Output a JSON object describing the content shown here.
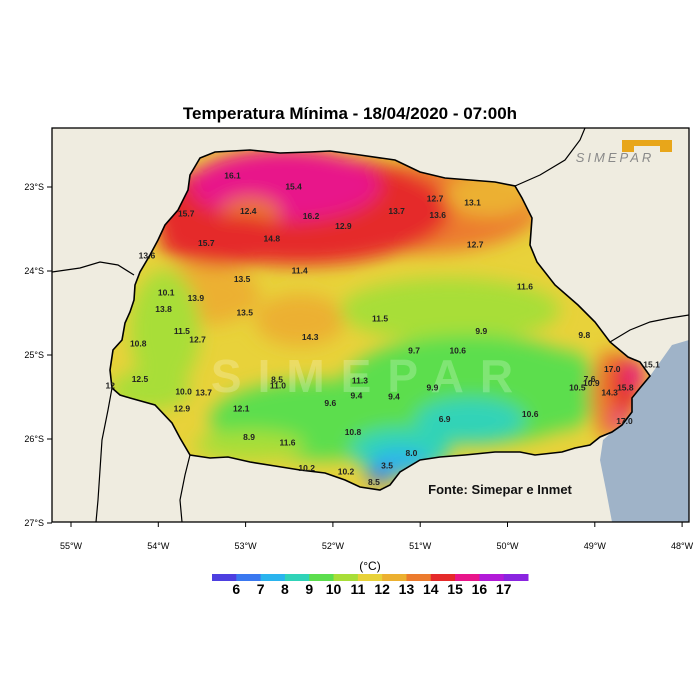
{
  "title": "Temperatura Mínima - 18/04/2020 - 07:00h",
  "source_label": "Fonte: Simepar e Inmet",
  "brand": "SIMEPAR",
  "colorbar": {
    "unit": "(°C)",
    "ticks": [
      "6",
      "7",
      "8",
      "9",
      "10",
      "11",
      "12",
      "13",
      "14",
      "15",
      "16",
      "17"
    ],
    "colors": [
      "#4d3fe0",
      "#3a78f0",
      "#2ab4ee",
      "#30d3b8",
      "#5cde4e",
      "#a8de38",
      "#e8d23a",
      "#ecb030",
      "#ec7b2e",
      "#e52a2a",
      "#e8158a",
      "#b21ad8",
      "#8a24e0"
    ]
  },
  "axes": {
    "lon_ticks": [
      "55°W",
      "54°W",
      "53°W",
      "52°W",
      "51°W",
      "50°W",
      "49°W",
      "48°W"
    ],
    "lat_ticks": [
      "23°S",
      "24°S",
      "25°S",
      "26°S",
      "27°S"
    ]
  },
  "colors": {
    "background": "#efece0",
    "ocean": "#9fb3c8",
    "border": "#000000"
  },
  "observations": [
    {
      "v": "16.1",
      "lon": -53.15,
      "lat": -22.9
    },
    {
      "v": "15.4",
      "lon": -52.45,
      "lat": -23.03
    },
    {
      "v": "15.7",
      "lon": -53.68,
      "lat": -23.35
    },
    {
      "v": "12.4",
      "lon": -52.97,
      "lat": -23.32
    },
    {
      "v": "16.2",
      "lon": -52.25,
      "lat": -23.38
    },
    {
      "v": "12.9",
      "lon": -51.88,
      "lat": -23.5
    },
    {
      "v": "13.7",
      "lon": -51.27,
      "lat": -23.32
    },
    {
      "v": "12.7",
      "lon": -50.83,
      "lat": -23.17
    },
    {
      "v": "13.6",
      "lon": -50.8,
      "lat": -23.37
    },
    {
      "v": "13.1",
      "lon": -50.4,
      "lat": -23.22
    },
    {
      "v": "15.7",
      "lon": -53.45,
      "lat": -23.7
    },
    {
      "v": "14.8",
      "lon": -52.7,
      "lat": -23.65
    },
    {
      "v": "12.7",
      "lon": -50.37,
      "lat": -23.72
    },
    {
      "v": "13.6",
      "lon": -54.13,
      "lat": -23.85
    },
    {
      "v": "11.4",
      "lon": -52.38,
      "lat": -24.03
    },
    {
      "v": "13.5",
      "lon": -53.04,
      "lat": -24.13
    },
    {
      "v": "10.1",
      "lon": -53.91,
      "lat": -24.29
    },
    {
      "v": "13.9",
      "lon": -53.57,
      "lat": -24.36
    },
    {
      "v": "11.6",
      "lon": -49.8,
      "lat": -24.22
    },
    {
      "v": "13.8",
      "lon": -53.94,
      "lat": -24.49
    },
    {
      "v": "13.5",
      "lon": -53.01,
      "lat": -24.53
    },
    {
      "v": "11.5",
      "lon": -51.46,
      "lat": -24.6
    },
    {
      "v": "11.5",
      "lon": -53.73,
      "lat": -24.75
    },
    {
      "v": "12.7",
      "lon": -53.55,
      "lat": -24.85
    },
    {
      "v": "14.3",
      "lon": -52.26,
      "lat": -24.82
    },
    {
      "v": "9.9",
      "lon": -50.3,
      "lat": -24.75
    },
    {
      "v": "9.8",
      "lon": -49.12,
      "lat": -24.8
    },
    {
      "v": "10.8",
      "lon": -54.23,
      "lat": -24.9
    },
    {
      "v": "9.7",
      "lon": -51.07,
      "lat": -24.98
    },
    {
      "v": "10.6",
      "lon": -50.57,
      "lat": -24.98
    },
    {
      "v": "17.0",
      "lon": -48.8,
      "lat": -25.2
    },
    {
      "v": "12.5",
      "lon": -54.21,
      "lat": -25.32
    },
    {
      "v": "8.5",
      "lon": -52.64,
      "lat": -25.33
    },
    {
      "v": "11.0",
      "lon": -52.63,
      "lat": -25.4
    },
    {
      "v": "11.3",
      "lon": -51.69,
      "lat": -25.34
    },
    {
      "v": "7.6",
      "lon": -49.06,
      "lat": -25.32
    },
    {
      "v": "10.9",
      "lon": -49.04,
      "lat": -25.37
    },
    {
      "v": "10.5",
      "lon": -49.2,
      "lat": -25.42
    },
    {
      "v": "9.9",
      "lon": -50.86,
      "lat": -25.42
    },
    {
      "v": "14.3",
      "lon": -48.83,
      "lat": -25.48
    },
    {
      "v": "15.8",
      "lon": -48.65,
      "lat": -25.42
    },
    {
      "v": "15.1",
      "lon": -48.35,
      "lat": -25.15
    },
    {
      "v": "10.0",
      "lon": -53.71,
      "lat": -25.47
    },
    {
      "v": "13.7",
      "lon": -53.48,
      "lat": -25.48
    },
    {
      "v": "9.4",
      "lon": -51.73,
      "lat": -25.52
    },
    {
      "v": "9.4",
      "lon": -51.3,
      "lat": -25.53
    },
    {
      "v": "9.6",
      "lon": -52.03,
      "lat": -25.61
    },
    {
      "v": "12.9",
      "lon": -53.73,
      "lat": -25.67
    },
    {
      "v": "12.1",
      "lon": -53.05,
      "lat": -25.67
    },
    {
      "v": "10.6",
      "lon": -49.74,
      "lat": -25.74
    },
    {
      "v": "6.9",
      "lon": -50.72,
      "lat": -25.8
    },
    {
      "v": "17.0",
      "lon": -48.66,
      "lat": -25.82
    },
    {
      "v": "10.8",
      "lon": -51.77,
      "lat": -25.95
    },
    {
      "v": "8.9",
      "lon": -52.96,
      "lat": -26.01
    },
    {
      "v": "11.6",
      "lon": -52.52,
      "lat": -26.08
    },
    {
      "v": "8.0",
      "lon": -51.1,
      "lat": -26.2
    },
    {
      "v": "10.2",
      "lon": -52.3,
      "lat": -26.38
    },
    {
      "v": "10.2",
      "lon": -51.85,
      "lat": -26.42
    },
    {
      "v": "3.5",
      "lon": -51.38,
      "lat": -26.35
    },
    {
      "v": "8.5",
      "lon": -51.53,
      "lat": -26.55
    },
    {
      "v": "12",
      "lon": -54.55,
      "lat": -25.4
    }
  ]
}
